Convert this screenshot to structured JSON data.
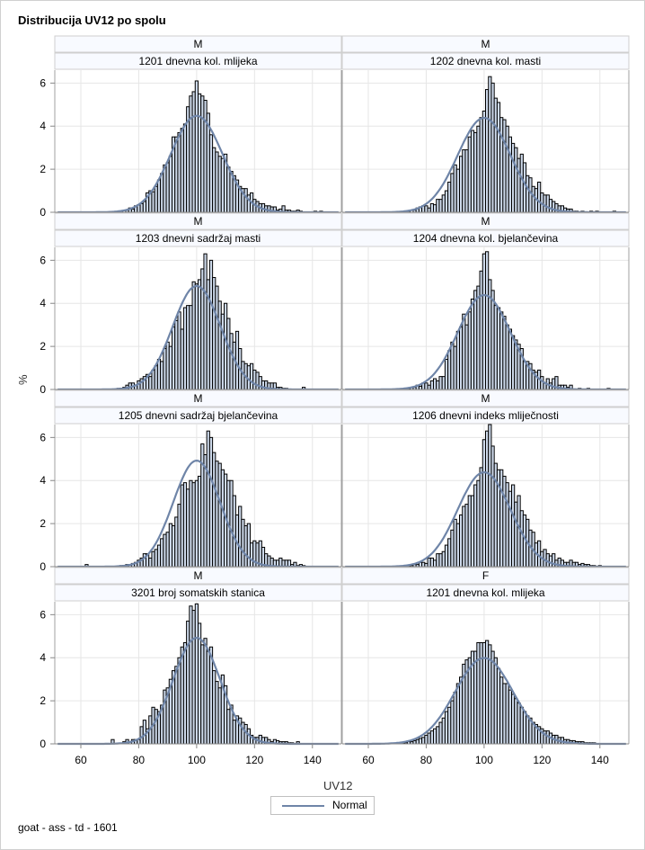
{
  "title": "Distribucija UV12 po spolu",
  "footnote": "goat - ass - td - 1601",
  "colors": {
    "bar_fill": "#cdd9ea",
    "bar_stroke": "#000000",
    "curve": "#6f85a8",
    "strip_bg": "#f8faff",
    "grid": "#e6e6e6",
    "frame": "#a0a0a0"
  },
  "chart_data": {
    "type": "bar",
    "title": "Distribucija UV12 po spolu",
    "xlabel": "UV12",
    "ylabel": "%",
    "xlim": [
      51,
      150
    ],
    "ylim": [
      0,
      6.6
    ],
    "xticks": [
      60,
      80,
      100,
      120,
      140
    ],
    "yticks": [
      0,
      2,
      4,
      6
    ],
    "grid": true,
    "bin_width": 1,
    "bin_start": 62,
    "legend": {
      "entries": [
        "Normal"
      ],
      "placement": "bottom-center"
    },
    "panels": [
      {
        "sex": "M",
        "trait": "1201 dnevna kol. mlijeka",
        "normal": {
          "mean": 100,
          "sd": 8.9
        },
        "values": [
          0,
          0,
          0,
          0,
          0,
          0,
          0,
          0,
          0,
          0,
          0,
          0,
          0.05,
          0,
          0.1,
          0.2,
          0.15,
          0.3,
          0.35,
          0.4,
          0.5,
          0.9,
          1.0,
          0.95,
          1.2,
          1.5,
          1.8,
          2.2,
          2.3,
          2.6,
          3.5,
          3.5,
          3.7,
          3.9,
          4.1,
          4.9,
          5.4,
          5.6,
          6.1,
          5.5,
          5.4,
          5.2,
          4.6,
          3.6,
          3.0,
          2.8,
          2.6,
          2.5,
          2.7,
          2.1,
          1.9,
          1.7,
          1.5,
          1.2,
          1.1,
          1.1,
          0.8,
          0.9,
          0.6,
          0.5,
          0.4,
          0.4,
          0.3,
          0.3,
          0.25,
          0.25,
          0.1,
          0.15,
          0.3,
          0.1,
          0.1,
          0.05,
          0.05,
          0.1,
          0.05,
          0,
          0,
          0,
          0,
          0.05,
          0,
          0.05,
          0,
          0,
          0,
          0,
          0
        ]
      },
      {
        "sex": "M",
        "trait": "1202 dnevna kol. masti",
        "normal": {
          "mean": 100,
          "sd": 9.1
        },
        "values": [
          0,
          0,
          0,
          0,
          0,
          0,
          0,
          0,
          0,
          0,
          0,
          0,
          0.05,
          0,
          0.1,
          0.2,
          0.25,
          0.3,
          0.3,
          0.2,
          0.4,
          0.35,
          0.6,
          0.6,
          0.8,
          1.0,
          1.4,
          1.8,
          2.2,
          2.0,
          2.6,
          2.9,
          2.9,
          3.5,
          3.8,
          3.7,
          4.0,
          4.4,
          4.7,
          5.7,
          6.3,
          6.0,
          5.3,
          5.1,
          4.4,
          4.3,
          4.0,
          3.5,
          3.2,
          3.0,
          2.5,
          2.7,
          2.3,
          1.7,
          1.6,
          1.2,
          1.1,
          1.4,
          0.9,
          0.8,
          0.8,
          0.6,
          0.5,
          0.4,
          0.3,
          0.3,
          0.2,
          0.15,
          0.15,
          0.05,
          0.05,
          0,
          0.05,
          0,
          0,
          0.05,
          0,
          0.05,
          0,
          0,
          0,
          0,
          0,
          0.05,
          0,
          0,
          0
        ]
      },
      {
        "sex": "M",
        "trait": "1203 dnevni sadržaj masti",
        "normal": {
          "mean": 100,
          "sd": 8.3
        },
        "values": [
          0,
          0,
          0,
          0,
          0,
          0,
          0,
          0,
          0,
          0,
          0,
          0.05,
          0.05,
          0.1,
          0.2,
          0.3,
          0.3,
          0.2,
          0.4,
          0.5,
          0.6,
          0.7,
          0.6,
          0.9,
          1.1,
          1.4,
          1.3,
          1.9,
          2.2,
          2.0,
          2.9,
          3.2,
          3.6,
          2.8,
          3.8,
          3.9,
          3.9,
          5.0,
          4.9,
          5.1,
          5.6,
          6.3,
          5.1,
          6.0,
          5.2,
          4.8,
          4.1,
          3.5,
          4.0,
          3.3,
          2.6,
          2.2,
          2.7,
          1.9,
          1.3,
          1.2,
          1.1,
          1.2,
          0.9,
          0.8,
          0.6,
          0.4,
          0.4,
          0.3,
          0.3,
          0.3,
          0.1,
          0.1,
          0.05,
          0.05,
          0,
          0,
          0,
          0,
          0,
          0.1,
          0,
          0,
          0,
          0,
          0,
          0,
          0,
          0,
          0,
          0,
          0
        ]
      },
      {
        "sex": "M",
        "trait": "1204 dnevna kol. bjelančevina",
        "normal": {
          "mean": 100,
          "sd": 9.1
        },
        "values": [
          0,
          0,
          0,
          0,
          0,
          0,
          0,
          0,
          0,
          0,
          0,
          0,
          0.05,
          0.1,
          0.1,
          0.2,
          0.15,
          0.3,
          0.3,
          0.2,
          0.4,
          0.5,
          0.4,
          0.6,
          0.6,
          1.4,
          1.8,
          2.2,
          2.0,
          2.7,
          2.9,
          3.5,
          3.0,
          3.6,
          4.2,
          4.6,
          4.8,
          5.5,
          6.3,
          6.4,
          5.1,
          4.6,
          3.9,
          3.8,
          3.6,
          3.4,
          3.0,
          2.8,
          2.5,
          2.3,
          2.1,
          1.9,
          1.3,
          1.3,
          1.2,
          0.9,
          0.8,
          0.9,
          0.6,
          0.3,
          0.5,
          0.3,
          0.5,
          0.6,
          0.2,
          0.2,
          0.2,
          0.1,
          0.2,
          0,
          0,
          0.05,
          0,
          0,
          0.05,
          0,
          0,
          0,
          0,
          0,
          0,
          0.05,
          0,
          0,
          0,
          0,
          0
        ]
      },
      {
        "sex": "M",
        "trait": "1205 dnevni sadržaj bjelančevina",
        "normal": {
          "mean": 100,
          "sd": 8.1
        },
        "values": [
          0.1,
          0,
          0,
          0,
          0,
          0,
          0,
          0,
          0,
          0,
          0,
          0,
          0.05,
          0.05,
          0.1,
          0.1,
          0.15,
          0.2,
          0.3,
          0.4,
          0.6,
          0.6,
          0.4,
          0.7,
          0.8,
          1.0,
          1.3,
          1.5,
          1.6,
          2.0,
          1.9,
          2.3,
          2.9,
          3.8,
          3.9,
          3.6,
          4.0,
          3.9,
          4.0,
          4.2,
          5.7,
          5.2,
          6.3,
          6.0,
          5.3,
          4.9,
          4.8,
          4.5,
          4.3,
          4.0,
          4.0,
          3.3,
          2.4,
          2.8,
          2.2,
          1.9,
          2.0,
          1.1,
          1.2,
          1.1,
          1.2,
          0.9,
          0.6,
          0.5,
          0.4,
          0.3,
          0.3,
          0.4,
          0.3,
          0.3,
          0.3,
          0.1,
          0.2,
          0.05,
          0.1,
          0.05,
          0,
          0,
          0,
          0,
          0,
          0,
          0,
          0,
          0,
          0,
          0
        ]
      },
      {
        "sex": "M",
        "trait": "1206 dnevni indeks mliječnosti",
        "normal": {
          "mean": 100,
          "sd": 9.1
        },
        "values": [
          0,
          0,
          0,
          0,
          0,
          0,
          0,
          0,
          0,
          0,
          0,
          0,
          0.05,
          0.05,
          0.1,
          0.1,
          0.2,
          0.2,
          0.15,
          0.4,
          0.4,
          0.3,
          0.6,
          0.6,
          0.7,
          1.0,
          1.3,
          1.7,
          2.2,
          2.0,
          2.4,
          2.8,
          2.9,
          3.3,
          3.3,
          3.8,
          4.0,
          4.6,
          5.9,
          6.3,
          6.6,
          5.6,
          4.8,
          4.5,
          4.5,
          4.2,
          3.9,
          3.5,
          3.8,
          3.0,
          3.3,
          2.6,
          2.4,
          2.2,
          1.7,
          1.6,
          1.1,
          1.2,
          0.7,
          0.8,
          0.6,
          0.5,
          0.6,
          0.3,
          0.4,
          0.3,
          0.2,
          0.2,
          0.3,
          0.2,
          0.2,
          0.1,
          0.15,
          0.1,
          0.1,
          0.05,
          0.05,
          0,
          0.05,
          0,
          0,
          0,
          0,
          0,
          0,
          0,
          0
        ]
      },
      {
        "sex": "M",
        "trait": "3201 broj somatskih stanica",
        "normal": {
          "mean": 100,
          "sd": 8.1
        },
        "values": [
          0,
          0,
          0,
          0,
          0,
          0,
          0,
          0,
          0,
          0.2,
          0,
          0,
          0,
          0.1,
          0.2,
          0.1,
          0.2,
          0.2,
          0.2,
          0.8,
          1.1,
          0.7,
          1.3,
          1.7,
          1.6,
          1.5,
          1.8,
          2.5,
          2.6,
          3.0,
          3.4,
          3.6,
          4.0,
          4.5,
          4.7,
          5.7,
          6.4,
          6.2,
          6.5,
          5.6,
          4.6,
          4.9,
          4.3,
          4.5,
          3.4,
          2.9,
          2.6,
          3.2,
          2.7,
          1.6,
          1.8,
          1.1,
          1.3,
          1.2,
          1.0,
          0.9,
          0.7,
          0.4,
          0.3,
          0.3,
          0.4,
          0.3,
          0.3,
          0.2,
          0.1,
          0.2,
          0.15,
          0.1,
          0.1,
          0.1,
          0.05,
          0.05,
          0,
          0.1,
          0,
          0,
          0,
          0,
          0,
          0,
          0,
          0,
          0,
          0,
          0,
          0,
          0
        ]
      },
      {
        "sex": "F",
        "trait": "1201 dnevna kol. mlijeka",
        "normal": {
          "mean": 100,
          "sd": 10.0
        },
        "values": [
          0,
          0,
          0,
          0,
          0,
          0,
          0,
          0,
          0,
          0.05,
          0.05,
          0.05,
          0.1,
          0.1,
          0.15,
          0.2,
          0.25,
          0.3,
          0.4,
          0.5,
          0.6,
          0.7,
          0.8,
          1.0,
          1.2,
          1.5,
          1.7,
          2.0,
          2.4,
          2.8,
          3.1,
          3.7,
          3.9,
          4.0,
          4.3,
          4.3,
          4.7,
          4.7,
          4.7,
          4.8,
          4.6,
          4.3,
          4.0,
          3.5,
          3.1,
          2.8,
          2.8,
          2.5,
          2.3,
          2.1,
          1.9,
          1.7,
          1.5,
          1.3,
          1.2,
          1.0,
          0.9,
          0.8,
          0.7,
          0.6,
          0.6,
          0.5,
          0.4,
          0.4,
          0.3,
          0.3,
          0.2,
          0.2,
          0.15,
          0.15,
          0.1,
          0.1,
          0.1,
          0.05,
          0.05,
          0.05,
          0.05,
          0,
          0,
          0,
          0,
          0,
          0,
          0,
          0,
          0,
          0
        ]
      }
    ]
  }
}
